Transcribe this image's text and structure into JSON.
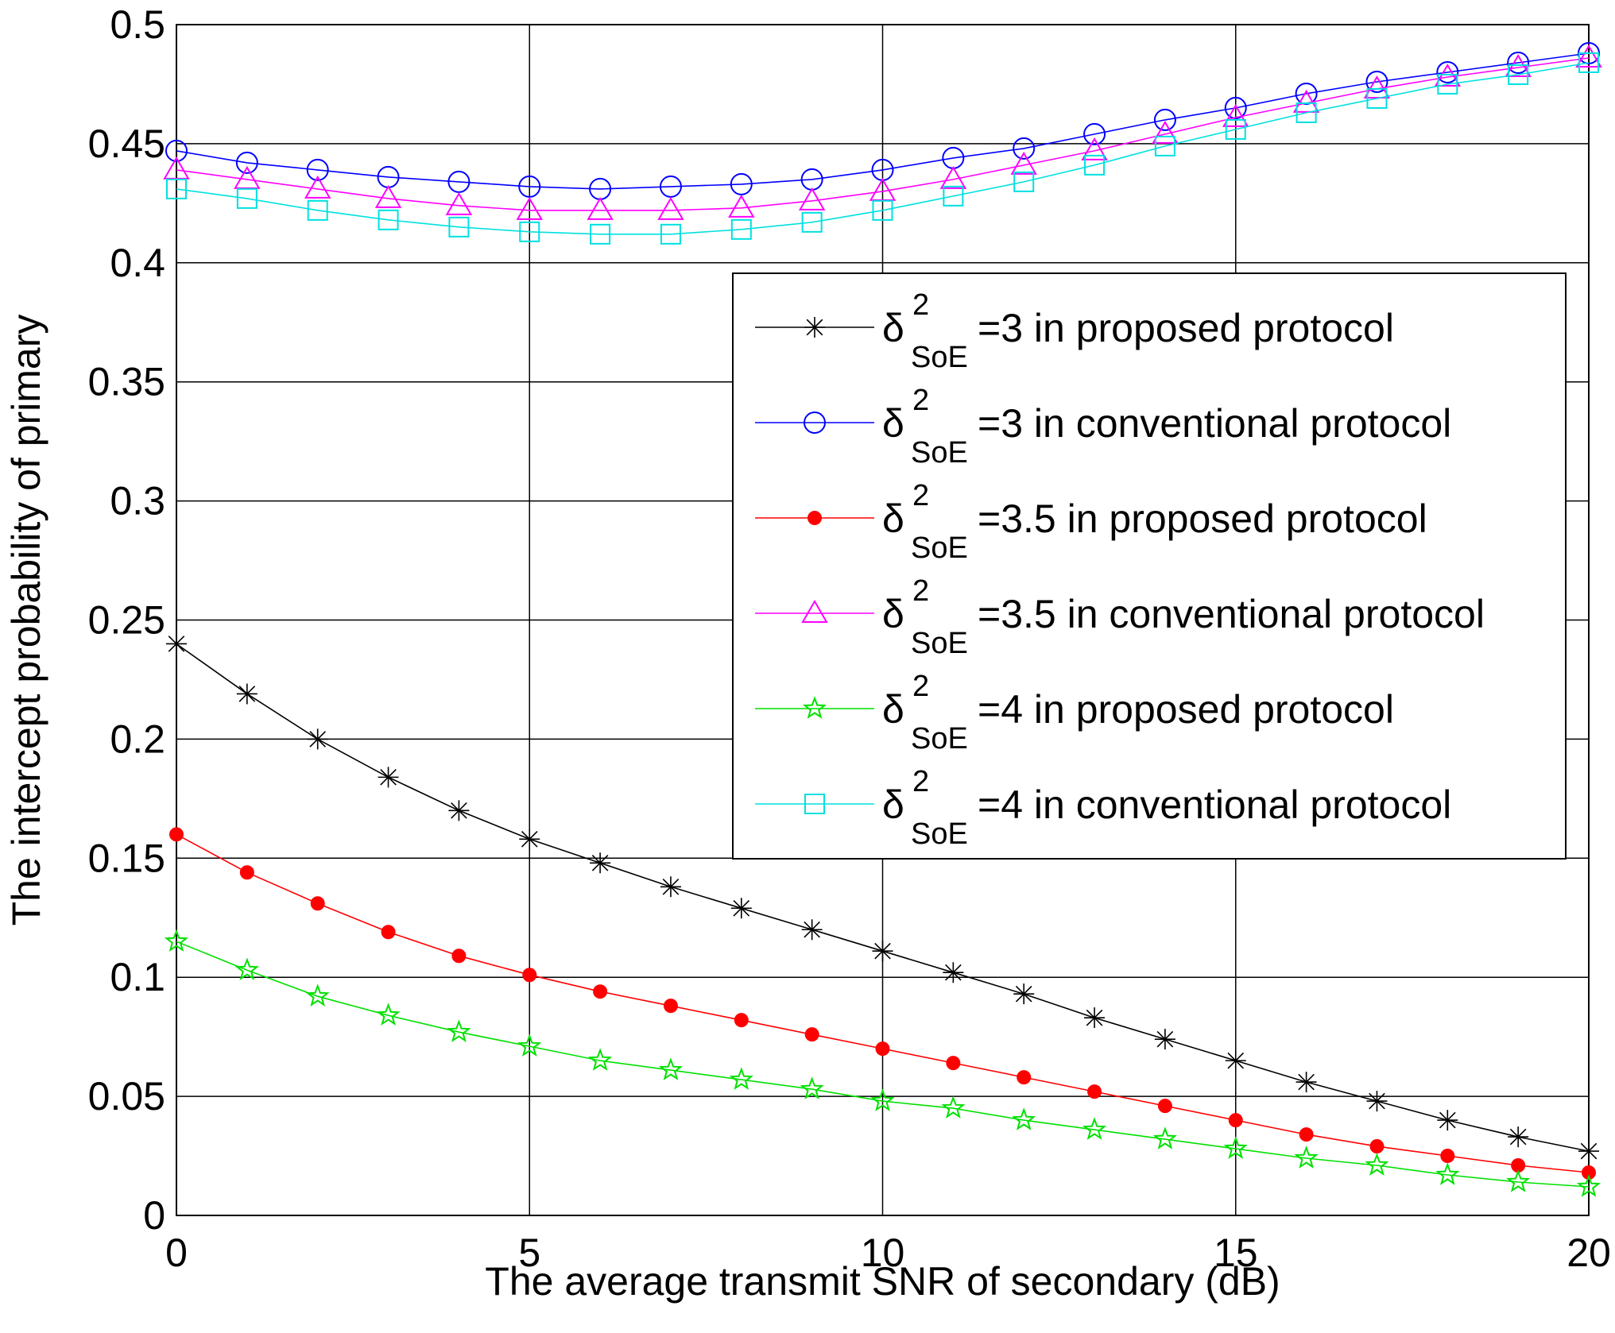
{
  "chart_data": {
    "type": "line",
    "xlabel": "The average transmit SNR of secondary (dB)",
    "ylabel": "The intercept probability of primary",
    "xlim": [
      0,
      20
    ],
    "ylim": [
      0,
      0.5
    ],
    "xticks": [
      0,
      5,
      10,
      15,
      20
    ],
    "xtick_labels": [
      "0",
      "5",
      "10",
      "15",
      "20"
    ],
    "yticks": [
      0,
      0.05,
      0.1,
      0.15,
      0.2,
      0.25,
      0.3,
      0.35,
      0.4,
      0.45,
      0.5
    ],
    "ytick_labels": [
      "0",
      "0.05",
      "0.1",
      "0.15",
      "0.2",
      "0.25",
      "0.3",
      "0.35",
      "0.4",
      "0.45",
      "0.5"
    ],
    "grid": true,
    "legend_position": "right",
    "x": [
      0,
      1,
      2,
      3,
      4,
      5,
      6,
      7,
      8,
      9,
      10,
      11,
      12,
      13,
      14,
      15,
      16,
      17,
      18,
      19,
      20
    ],
    "series": [
      {
        "name": "=3 in proposed protocol",
        "symbol": "δ",
        "sup": "2",
        "sub": "SoE",
        "color": "#000000",
        "marker": "asterisk",
        "values": [
          0.24,
          0.219,
          0.2,
          0.184,
          0.17,
          0.158,
          0.148,
          0.138,
          0.129,
          0.12,
          0.111,
          0.102,
          0.093,
          0.083,
          0.074,
          0.065,
          0.056,
          0.048,
          0.04,
          0.033,
          0.027
        ]
      },
      {
        "name": "=3 in conventional protocol",
        "symbol": "δ",
        "sup": "2",
        "sub": "SoE",
        "color": "#0000ff",
        "marker": "circle",
        "values": [
          0.447,
          0.442,
          0.439,
          0.436,
          0.434,
          0.432,
          0.431,
          0.432,
          0.433,
          0.435,
          0.439,
          0.444,
          0.448,
          0.454,
          0.46,
          0.465,
          0.471,
          0.476,
          0.48,
          0.484,
          0.488
        ]
      },
      {
        "name": "=3.5 in proposed protocol",
        "symbol": "δ",
        "sup": "2",
        "sub": "SoE",
        "color": "#ff0000",
        "marker": "dot",
        "values": [
          0.16,
          0.144,
          0.131,
          0.119,
          0.109,
          0.101,
          0.094,
          0.088,
          0.082,
          0.076,
          0.07,
          0.064,
          0.058,
          0.052,
          0.046,
          0.04,
          0.034,
          0.029,
          0.025,
          0.021,
          0.018
        ]
      },
      {
        "name": "=3.5 in conventional protocol",
        "symbol": "δ",
        "sup": "2",
        "sub": "SoE",
        "color": "#ff00ff",
        "marker": "triangle",
        "values": [
          0.439,
          0.435,
          0.431,
          0.427,
          0.424,
          0.422,
          0.422,
          0.422,
          0.423,
          0.426,
          0.43,
          0.435,
          0.441,
          0.447,
          0.454,
          0.461,
          0.467,
          0.473,
          0.478,
          0.482,
          0.486
        ]
      },
      {
        "name": "=4 in proposed protocol",
        "symbol": "δ",
        "sup": "2",
        "sub": "SoE",
        "color": "#00e000",
        "marker": "star",
        "values": [
          0.115,
          0.103,
          0.092,
          0.084,
          0.077,
          0.071,
          0.065,
          0.061,
          0.057,
          0.053,
          0.048,
          0.045,
          0.04,
          0.036,
          0.032,
          0.028,
          0.024,
          0.021,
          0.017,
          0.014,
          0.012
        ]
      },
      {
        "name": "=4 in conventional protocol",
        "symbol": "δ",
        "sup": "2",
        "sub": "SoE",
        "color": "#00e0e0",
        "marker": "square",
        "values": [
          0.431,
          0.427,
          0.422,
          0.418,
          0.415,
          0.413,
          0.412,
          0.412,
          0.414,
          0.417,
          0.422,
          0.428,
          0.434,
          0.441,
          0.449,
          0.456,
          0.463,
          0.469,
          0.475,
          0.479,
          0.484
        ]
      }
    ]
  }
}
